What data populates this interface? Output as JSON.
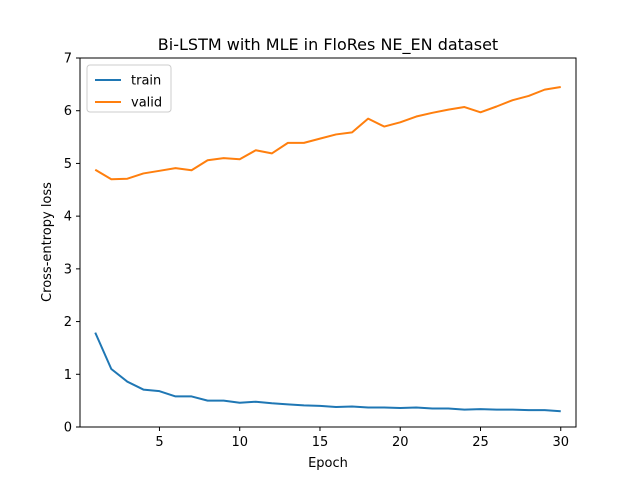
{
  "chart_data": {
    "type": "line",
    "title": "Bi-LSTM with MLE in FloRes NE_EN dataset",
    "xlabel": "Epoch",
    "ylabel": "Cross-entropy loss",
    "xlim": [
      0.05,
      30.95
    ],
    "ylim": [
      0,
      7
    ],
    "xticks": [
      5,
      10,
      15,
      20,
      25,
      30
    ],
    "yticks": [
      0,
      1,
      2,
      3,
      4,
      5,
      6,
      7
    ],
    "grid": false,
    "legend_position": "upper left",
    "x": [
      1,
      2,
      3,
      4,
      5,
      6,
      7,
      8,
      9,
      10,
      11,
      12,
      13,
      14,
      15,
      16,
      17,
      18,
      19,
      20,
      21,
      22,
      23,
      24,
      25,
      26,
      27,
      28,
      29,
      30
    ],
    "series": [
      {
        "name": "train",
        "color": "#1f77b4",
        "values": [
          1.79,
          1.1,
          0.86,
          0.71,
          0.68,
          0.58,
          0.58,
          0.5,
          0.5,
          0.46,
          0.48,
          0.45,
          0.43,
          0.41,
          0.4,
          0.38,
          0.39,
          0.37,
          0.37,
          0.36,
          0.37,
          0.35,
          0.35,
          0.33,
          0.34,
          0.33,
          0.33,
          0.32,
          0.32,
          0.3
        ]
      },
      {
        "name": "valid",
        "color": "#ff7f0e",
        "values": [
          4.88,
          4.7,
          4.71,
          4.81,
          4.86,
          4.91,
          4.87,
          5.06,
          5.1,
          5.08,
          5.25,
          5.19,
          5.39,
          5.39,
          5.47,
          5.55,
          5.59,
          5.85,
          5.7,
          5.78,
          5.89,
          5.96,
          6.02,
          6.07,
          5.97,
          6.08,
          6.2,
          6.28,
          6.4,
          6.45
        ]
      }
    ]
  }
}
